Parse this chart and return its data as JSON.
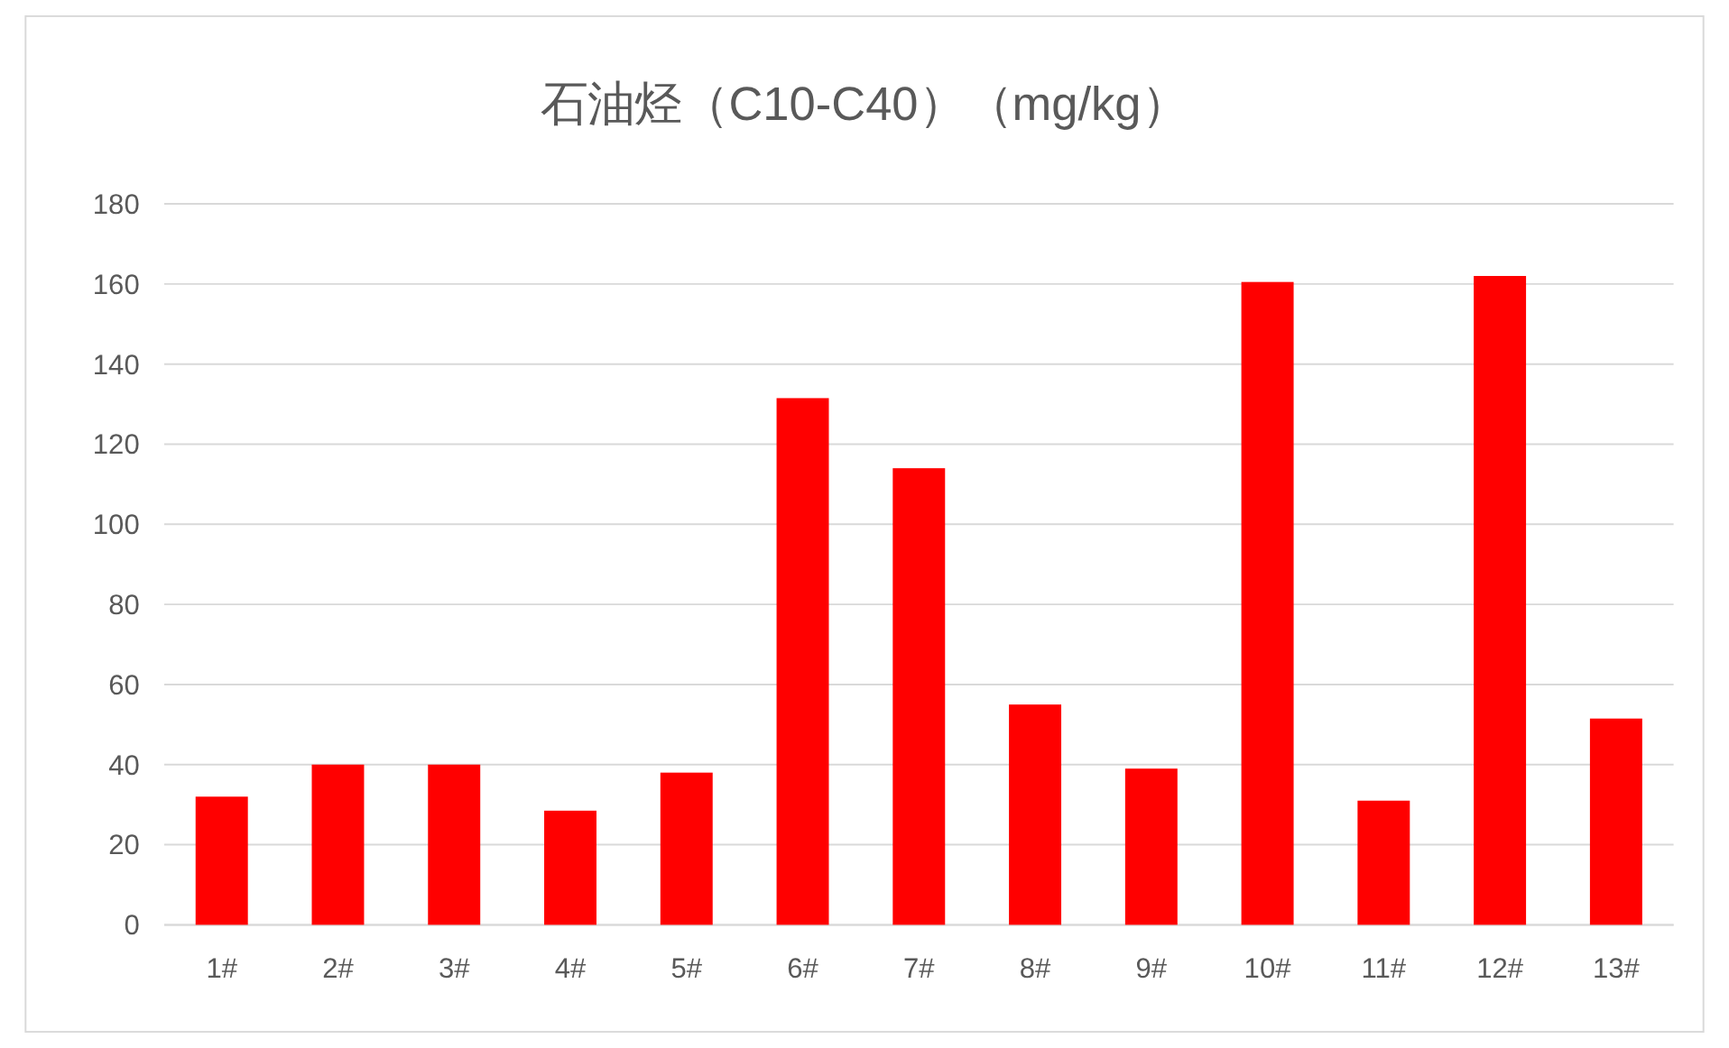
{
  "chart_data": {
    "type": "bar",
    "title": "石油烃（C10-C40）（mg/kg）",
    "categories": [
      "1#",
      "2#",
      "3#",
      "4#",
      "5#",
      "6#",
      "7#",
      "8#",
      "9#",
      "10#",
      "11#",
      "12#",
      "13#"
    ],
    "values": [
      32,
      40,
      40,
      28.5,
      38,
      131.5,
      114,
      55,
      39,
      160.5,
      31,
      162,
      51.5
    ],
    "color": "#ff0000",
    "ylim": [
      0,
      180
    ],
    "yticks": [
      0,
      20,
      40,
      60,
      80,
      100,
      120,
      140,
      160,
      180
    ],
    "grid": "y"
  }
}
